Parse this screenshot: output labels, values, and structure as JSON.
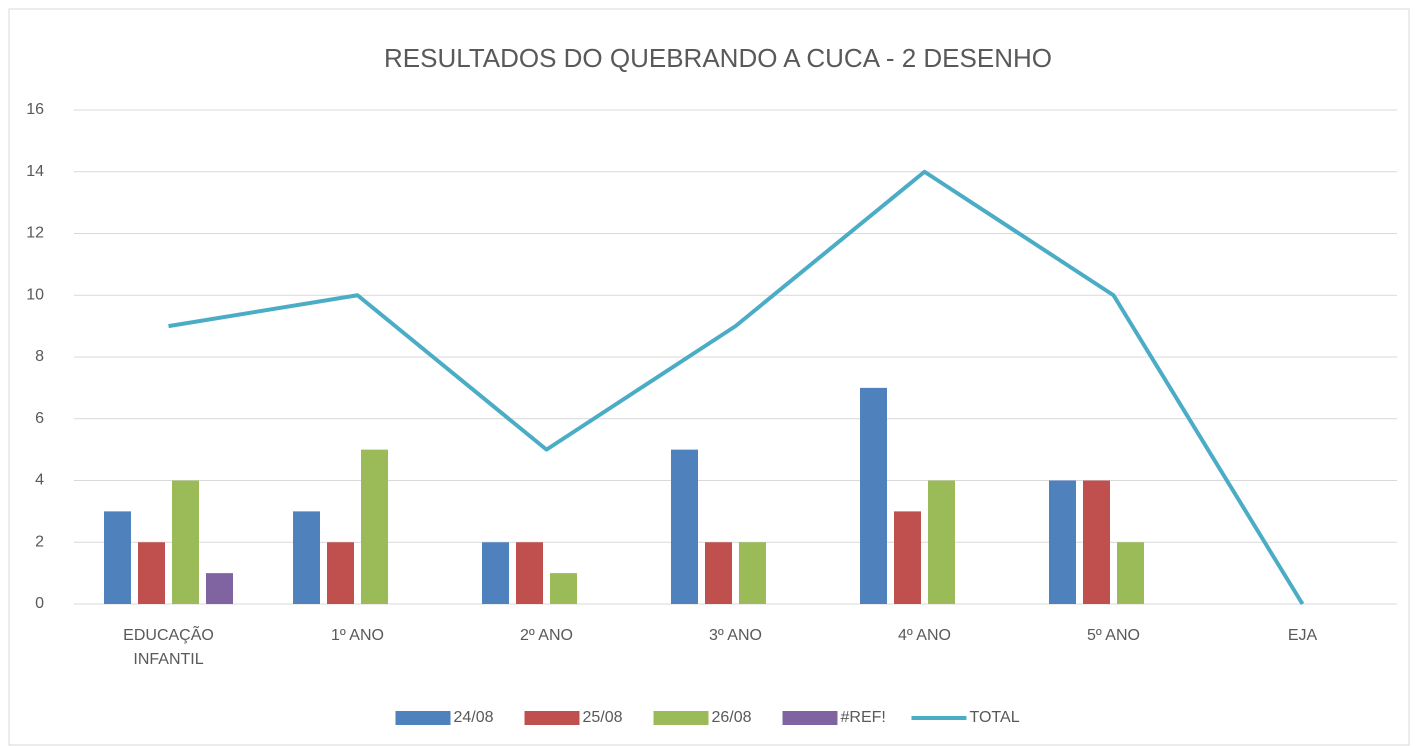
{
  "chart_data": {
    "type": "bar",
    "title": "RESULTADOS DO QUEBRANDO A CUCA - 2 DESENHO",
    "categories": [
      "EDUCAÇÃO INFANTIL",
      "1º ANO",
      "2º ANO",
      "3º ANO",
      "4º ANO",
      "5º ANO",
      "EJA"
    ],
    "series": [
      {
        "name": "24/08",
        "color": "#4f81bd",
        "type": "bar",
        "values": [
          3,
          3,
          2,
          5,
          7,
          4,
          0
        ]
      },
      {
        "name": "25/08",
        "color": "#c0504d",
        "type": "bar",
        "values": [
          2,
          2,
          2,
          2,
          3,
          4,
          0
        ]
      },
      {
        "name": "26/08",
        "color": "#9bbb59",
        "type": "bar",
        "values": [
          4,
          5,
          1,
          2,
          4,
          2,
          0
        ]
      },
      {
        "name": "#REF!",
        "color": "#8064a2",
        "type": "bar",
        "values": [
          1,
          0,
          0,
          0,
          0,
          0,
          0
        ]
      },
      {
        "name": "TOTAL",
        "color": "#4bacc6",
        "type": "line",
        "values": [
          9,
          10,
          5,
          9,
          14,
          10,
          0
        ]
      }
    ],
    "ylim": [
      0,
      16
    ],
    "yticks": [
      0,
      2,
      4,
      6,
      8,
      10,
      12,
      14,
      16
    ],
    "grid": true,
    "legend": "bottom"
  }
}
